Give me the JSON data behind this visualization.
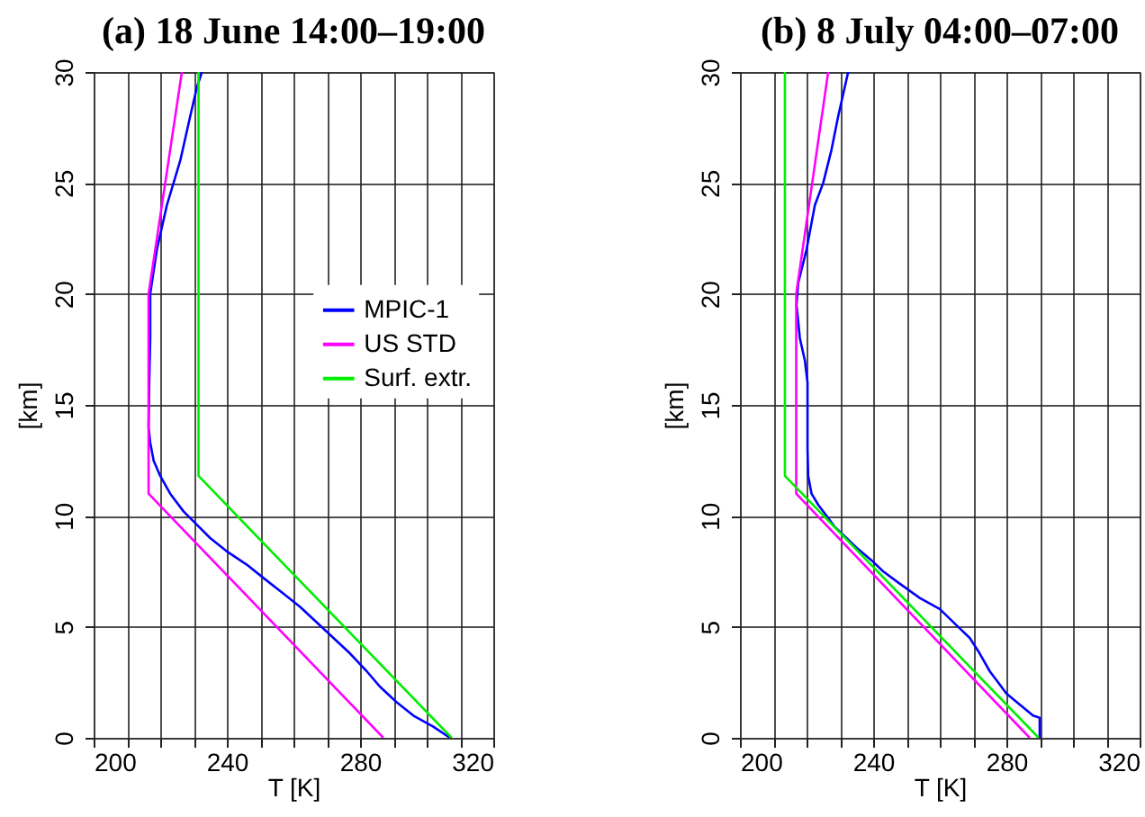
{
  "chart_data": [
    {
      "type": "line",
      "title": "(a) 18 June 14:00–19:00",
      "xlabel": "T [K]",
      "ylabel": "[km]",
      "xlim": [
        200,
        320
      ],
      "ylim": [
        0,
        30
      ],
      "xticks": [
        200,
        {
          "value": 210,
          "label": null
        },
        {
          "value": 220,
          "label": null
        },
        {
          "value": 230,
          "label": null
        },
        240,
        {
          "value": 250,
          "label": null
        },
        {
          "value": 260,
          "label": null
        },
        {
          "value": 270,
          "label": null
        },
        280,
        {
          "value": 290,
          "label": null
        },
        {
          "value": 300,
          "label": null
        },
        {
          "value": 310,
          "label": null
        },
        320
      ],
      "yticks": [
        0,
        5,
        10,
        15,
        20,
        25,
        30
      ],
      "grid": true,
      "legend": "right",
      "series": [
        {
          "name": "MPIC-1",
          "color": "#0000ff",
          "x": [
            307,
            302,
            296,
            291,
            286,
            282,
            277,
            272,
            267,
            262,
            257,
            251,
            246,
            240,
            235,
            231,
            227,
            223,
            220,
            218,
            217,
            216.5,
            216.7,
            217,
            217,
            219,
            222,
            226,
            229,
            231,
            232.5
          ],
          "values": [
            0,
            0.5,
            1,
            1.6,
            2.3,
            3,
            3.8,
            4.5,
            5.2,
            5.9,
            6.5,
            7.2,
            7.8,
            8.4,
            9,
            9.6,
            10.2,
            11,
            11.8,
            12.5,
            13.3,
            14,
            16,
            18,
            20,
            22,
            24,
            26,
            28,
            29.3,
            30
          ]
        },
        {
          "name": "US STD",
          "color": "#ff00ff",
          "x": [
            287,
            216.5,
            216.5,
            226.5
          ],
          "values": [
            0,
            11,
            20,
            30
          ]
        },
        {
          "name": "Surf. extr.",
          "color": "#00ee00",
          "x": [
            307.5,
            231.5,
            231.5
          ],
          "values": [
            0,
            11.8,
            30
          ]
        }
      ]
    },
    {
      "type": "line",
      "title": "(b) 8 July 04:00–07:00",
      "xlabel": "T [K]",
      "ylabel": "[km]",
      "xlim": [
        200,
        320
      ],
      "ylim": [
        0,
        30
      ],
      "xticks": [
        200,
        {
          "value": 210,
          "label": null
        },
        {
          "value": 220,
          "label": null
        },
        {
          "value": 230,
          "label": null
        },
        240,
        {
          "value": 250,
          "label": null
        },
        {
          "value": 260,
          "label": null
        },
        {
          "value": 270,
          "label": null
        },
        280,
        {
          "value": 290,
          "label": null
        },
        {
          "value": 300,
          "label": null
        },
        {
          "value": 310,
          "label": null
        },
        320
      ],
      "yticks": [
        0,
        5,
        10,
        15,
        20,
        25,
        30
      ],
      "grid": true,
      "legend": "right",
      "series": [
        {
          "name": "MPIC-1",
          "color": "#0000ff",
          "x": [
            290,
            290,
            288,
            284,
            280,
            277.5,
            275,
            272,
            269,
            265.5,
            260,
            254,
            247.5,
            243,
            239.5,
            235.5,
            232,
            228.5,
            226,
            223.5,
            221.5,
            220.5,
            220.3,
            220.3,
            219.5,
            218,
            217,
            217.5,
            220,
            222.5,
            225,
            227.5,
            229.5,
            232.5
          ],
          "values": [
            0,
            0.9,
            1,
            1.5,
            2,
            2.5,
            3,
            3.8,
            4.5,
            5,
            5.8,
            6.3,
            7,
            7.5,
            8,
            8.5,
            9,
            9.5,
            10,
            10.5,
            11,
            11.8,
            13,
            16,
            17,
            18,
            19.5,
            20.5,
            22,
            24,
            25,
            26.5,
            28,
            30
          ]
        },
        {
          "name": "US STD",
          "color": "#ff00ff",
          "x": [
            287,
            216.9,
            216.9,
            226.5
          ],
          "values": [
            0,
            11,
            20,
            30
          ]
        },
        {
          "name": "Surf. extr.",
          "color": "#00ee00",
          "x": [
            289.7,
            213.5,
            213.5
          ],
          "values": [
            0,
            11.8,
            30
          ]
        }
      ]
    }
  ]
}
